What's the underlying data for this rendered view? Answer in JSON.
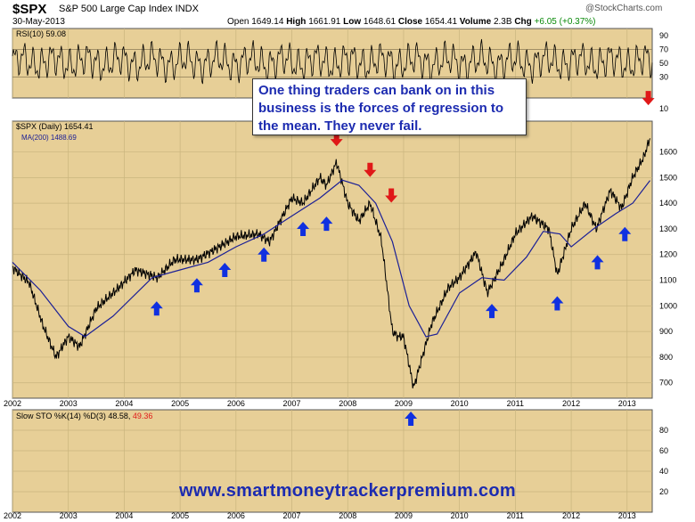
{
  "header": {
    "symbol": "$SPX",
    "name": "S&P 500 Large Cap Index INDX",
    "date": "30-May-2013",
    "quote": {
      "open_label": "Open",
      "open": "1649.14",
      "high_label": "High",
      "high": "1661.91",
      "low_label": "Low",
      "low": "1648.61",
      "close_label": "Close",
      "close": "1654.41",
      "volume_label": "Volume",
      "volume": "2.3B",
      "chg_label": "Chg",
      "chg": "+6.05 (+0.37%)"
    },
    "source": "@StockCharts.com"
  },
  "annotation": "One thing traders can bank on in this business is the forces of regression to the mean. They never fail.",
  "url": "www.smartmoneytrackerpremium.com",
  "colors": {
    "panel_bg": "#e7cf97",
    "price": "#000000",
    "ma": "#1c2096",
    "up_arrow": "#1030e0",
    "down_arrow": "#e01818",
    "stoch_k": "#000000",
    "stoch_d": "#e01818"
  },
  "icons": [
    "arrow-up-icon",
    "arrow-down-icon"
  ],
  "chart_data": [
    {
      "type": "line",
      "panel": "rsi",
      "title": "RSI(10) 59.08",
      "y_ticks": [
        "10",
        "30",
        "50",
        "70",
        "90"
      ],
      "ylim": [
        0,
        100
      ],
      "reference_lines": [
        30,
        70
      ],
      "last_value": 59.08
    },
    {
      "type": "line",
      "panel": "price",
      "title": "$SPX (Daily) 1654.41",
      "x_ticks": [
        "2002",
        "2003",
        "2004",
        "2005",
        "2006",
        "2007",
        "2008",
        "2009",
        "2010",
        "2011",
        "2012",
        "2013"
      ],
      "y_ticks": [
        "700",
        "800",
        "900",
        "1000",
        "1100",
        "1200",
        "1300",
        "1400",
        "1500",
        "1600"
      ],
      "ylim": [
        640,
        1720
      ],
      "series": [
        {
          "name": "$SPX (Daily) 1654.41",
          "x": [
            2002.0,
            2002.3,
            2002.55,
            2002.78,
            2003.0,
            2003.2,
            2003.5,
            2003.9,
            2004.2,
            2004.6,
            2004.9,
            2005.3,
            2005.7,
            2006.0,
            2006.4,
            2006.6,
            2007.0,
            2007.2,
            2007.5,
            2007.62,
            2007.8,
            2008.0,
            2008.2,
            2008.4,
            2008.6,
            2008.8,
            2008.9,
            2009.0,
            2009.18,
            2009.5,
            2009.8,
            2010.0,
            2010.3,
            2010.5,
            2010.8,
            2011.0,
            2011.3,
            2011.6,
            2011.75,
            2012.0,
            2012.25,
            2012.45,
            2012.7,
            2012.9,
            2013.1,
            2013.3,
            2013.41
          ],
          "y": [
            1150,
            1090,
            920,
            800,
            880,
            840,
            990,
            1070,
            1140,
            1110,
            1180,
            1180,
            1230,
            1270,
            1280,
            1250,
            1420,
            1400,
            1500,
            1470,
            1560,
            1400,
            1330,
            1400,
            1260,
            900,
            880,
            880,
            680,
            930,
            1070,
            1110,
            1210,
            1050,
            1180,
            1280,
            1350,
            1300,
            1120,
            1300,
            1400,
            1300,
            1450,
            1380,
            1500,
            1580,
            1654
          ]
        },
        {
          "name": "MA(200) 1488.69",
          "x": [
            2002.0,
            2002.5,
            2003.0,
            2003.3,
            2003.8,
            2004.5,
            2005.0,
            2005.5,
            2006.0,
            2006.5,
            2007.0,
            2007.5,
            2007.9,
            2008.2,
            2008.5,
            2008.8,
            2009.1,
            2009.4,
            2009.6,
            2010.0,
            2010.4,
            2010.8,
            2011.2,
            2011.5,
            2011.8,
            2012.0,
            2012.4,
            2012.8,
            2013.1,
            2013.41
          ],
          "y": [
            1170,
            1060,
            920,
            880,
            960,
            1110,
            1140,
            1170,
            1230,
            1280,
            1350,
            1420,
            1490,
            1470,
            1400,
            1250,
            1000,
            880,
            890,
            1050,
            1110,
            1100,
            1190,
            1290,
            1280,
            1230,
            1300,
            1360,
            1400,
            1488.69
          ]
        }
      ],
      "arrows": [
        {
          "dir": "up",
          "x": 2004.58,
          "y": 990
        },
        {
          "dir": "up",
          "x": 2005.3,
          "y": 1080
        },
        {
          "dir": "up",
          "x": 2005.8,
          "y": 1140
        },
        {
          "dir": "up",
          "x": 2006.5,
          "y": 1200
        },
        {
          "dir": "up",
          "x": 2007.2,
          "y": 1300
        },
        {
          "dir": "up",
          "x": 2007.62,
          "y": 1320
        },
        {
          "dir": "down",
          "x": 2007.8,
          "y": 1650
        },
        {
          "dir": "down",
          "x": 2008.4,
          "y": 1530
        },
        {
          "dir": "down",
          "x": 2008.78,
          "y": 1430
        },
        {
          "dir": "up",
          "x": 2010.58,
          "y": 980
        },
        {
          "dir": "up",
          "x": 2011.75,
          "y": 1010
        },
        {
          "dir": "up",
          "x": 2012.47,
          "y": 1170
        },
        {
          "dir": "up",
          "x": 2012.96,
          "y": 1280
        },
        {
          "dir": "down",
          "x": 2013.38,
          "y": 1810
        },
        {
          "dir": "up",
          "x": 2009.13,
          "y": 560
        }
      ]
    },
    {
      "type": "line",
      "panel": "stochastic",
      "title": "Slow STO %K(14) %D(3) 48.58, 49.36",
      "k_last": 48.58,
      "d_last": 49.36,
      "y_ticks": [
        "20",
        "40",
        "60",
        "80"
      ],
      "ylim": [
        0,
        100
      ],
      "x_ticks": [
        "2002",
        "2003",
        "2004",
        "2005",
        "2006",
        "2007",
        "2008",
        "2009",
        "2010",
        "2011",
        "2012",
        "2013"
      ]
    }
  ],
  "stoch_title_parts": {
    "prefix": "Slow STO %K(14) %D(3) 48.58,",
    "d": "49.36"
  },
  "rsi_title": "RSI(10) 59.08",
  "price_title": "$SPX (Daily) 1654.41",
  "ma_title": "MA(200) 1488.69"
}
